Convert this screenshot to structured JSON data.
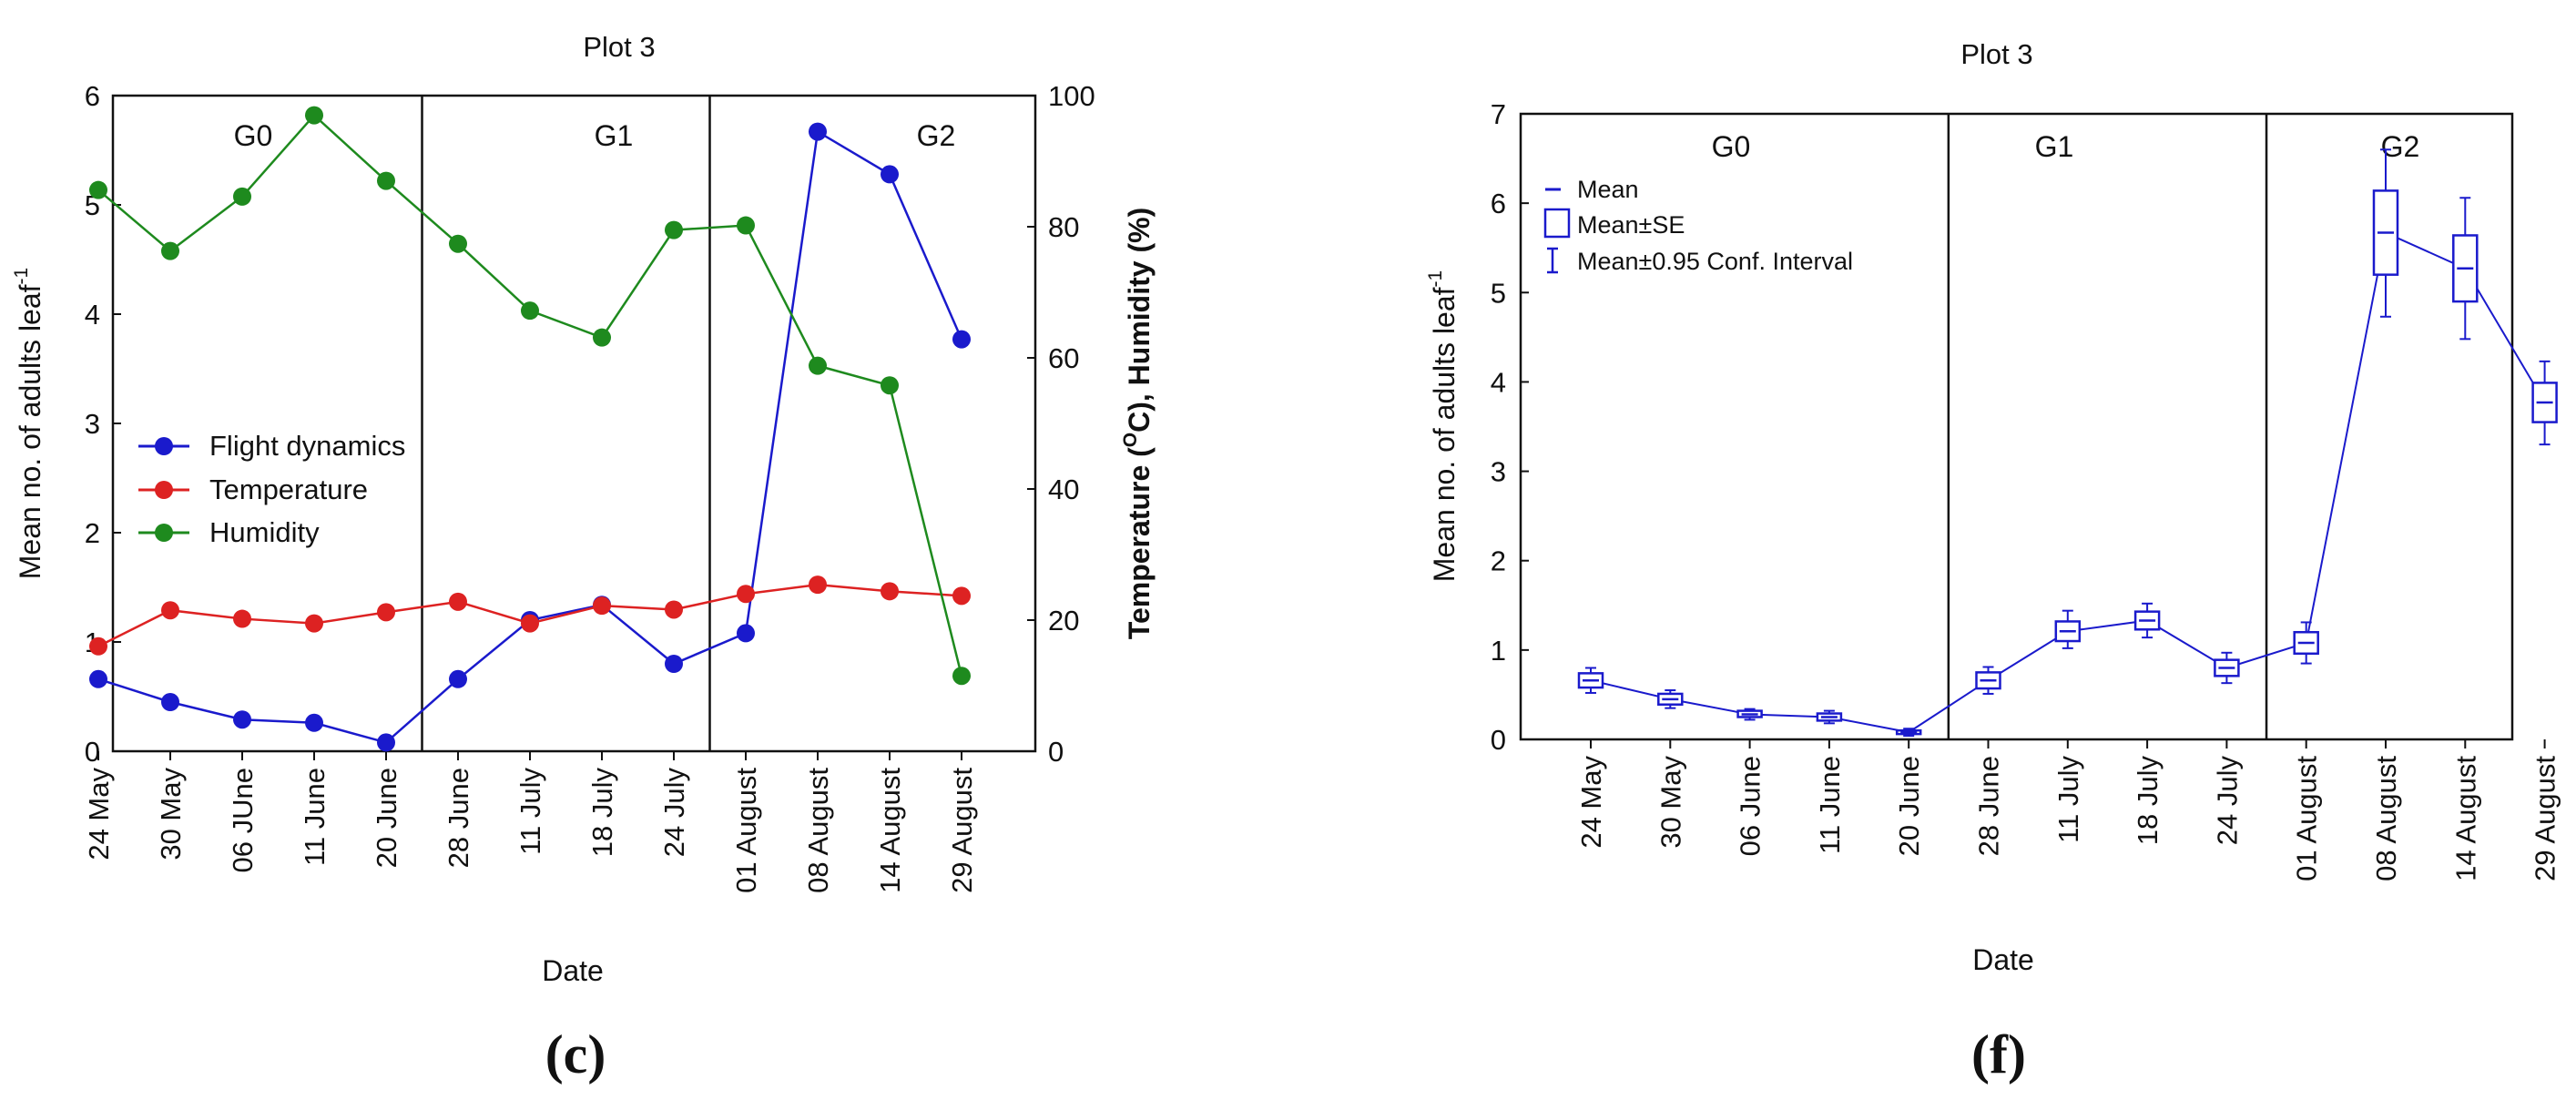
{
  "colors": {
    "flight": "#1a1acc",
    "temperature": "#dd2222",
    "humidity": "#1e8a1e",
    "box": "#1a1acc",
    "axis": "#111111"
  },
  "chart_data": [
    {
      "id": "c",
      "type": "line",
      "title": "Plot 3",
      "panel_label": "(c)",
      "xlabel": "Date",
      "ylabel": "Mean no. of adults leaf",
      "ylabel_sup": "-1",
      "y2label_pre": "Temperature (",
      "y2label_sup": "O",
      "y2label_post": "C), Humidity (%)",
      "categories": [
        "24 May",
        "30 May",
        "06 JUne",
        "11 June",
        "20 June",
        "28 June",
        "11 July",
        "18 July",
        "24 July",
        "01 August",
        "08 August",
        "14 August",
        "29 August"
      ],
      "ylim": [
        0,
        6
      ],
      "yticks": [
        "0",
        "1",
        "2",
        "3",
        "4",
        "5",
        "6"
      ],
      "y2lim": [
        0,
        100
      ],
      "y2ticks": [
        "0",
        "20",
        "40",
        "60",
        "80",
        "100"
      ],
      "generations": [
        "G0",
        "G1",
        "G2"
      ],
      "series": [
        {
          "name": "Flight dynamics",
          "axis": "left",
          "values": [
            0.66,
            0.45,
            0.29,
            0.26,
            0.08,
            0.66,
            1.2,
            1.34,
            0.8,
            1.08,
            5.67,
            5.28,
            3.77
          ]
        },
        {
          "name": "Temperature",
          "axis": "right",
          "values": [
            16,
            21.5,
            20.2,
            19.5,
            21.2,
            22.8,
            19.5,
            22.2,
            21.6,
            24,
            25.4,
            24.4,
            23.7
          ]
        },
        {
          "name": "Humidity",
          "axis": "right",
          "values": [
            85.6,
            76.3,
            84.6,
            97,
            87,
            77.4,
            67.2,
            63.1,
            79.5,
            80.2,
            58.8,
            55.8,
            11.5
          ]
        }
      ]
    },
    {
      "id": "f",
      "type": "box",
      "title": "Plot 3",
      "panel_label": "(f)",
      "xlabel": "Date",
      "ylabel": "Mean no. of adults leaf",
      "ylabel_sup": "-1",
      "categories": [
        "24 May",
        "30 May",
        "06 June",
        "11 June",
        "20 June",
        "28 June",
        "11 July",
        "18 July",
        "24 July",
        "01 August",
        "08 August",
        "14 August",
        "29 August"
      ],
      "ylim": [
        0,
        7
      ],
      "yticks": [
        "0",
        "1",
        "2",
        "3",
        "4",
        "5",
        "6",
        "7"
      ],
      "generations": [
        "G0",
        "G1",
        "G2"
      ],
      "legend": [
        "Mean",
        "Mean±SE",
        "Mean±0.95 Conf. Interval"
      ],
      "mean": [
        0.66,
        0.45,
        0.28,
        0.25,
        0.08,
        0.66,
        1.21,
        1.33,
        0.8,
        1.08,
        5.67,
        5.27,
        3.77
      ],
      "se_low": [
        0.58,
        0.39,
        0.25,
        0.21,
        0.06,
        0.57,
        1.1,
        1.23,
        0.71,
        0.96,
        5.2,
        4.9,
        3.55
      ],
      "se_high": [
        0.74,
        0.51,
        0.32,
        0.29,
        0.1,
        0.75,
        1.32,
        1.43,
        0.89,
        1.2,
        6.14,
        5.64,
        3.99
      ],
      "ci_low": [
        0.52,
        0.35,
        0.22,
        0.18,
        0.04,
        0.51,
        1.02,
        1.14,
        0.63,
        0.85,
        4.73,
        4.48,
        3.3
      ],
      "ci_high": [
        0.8,
        0.55,
        0.34,
        0.32,
        0.12,
        0.81,
        1.44,
        1.52,
        0.97,
        1.31,
        6.6,
        6.06,
        4.23
      ]
    }
  ]
}
